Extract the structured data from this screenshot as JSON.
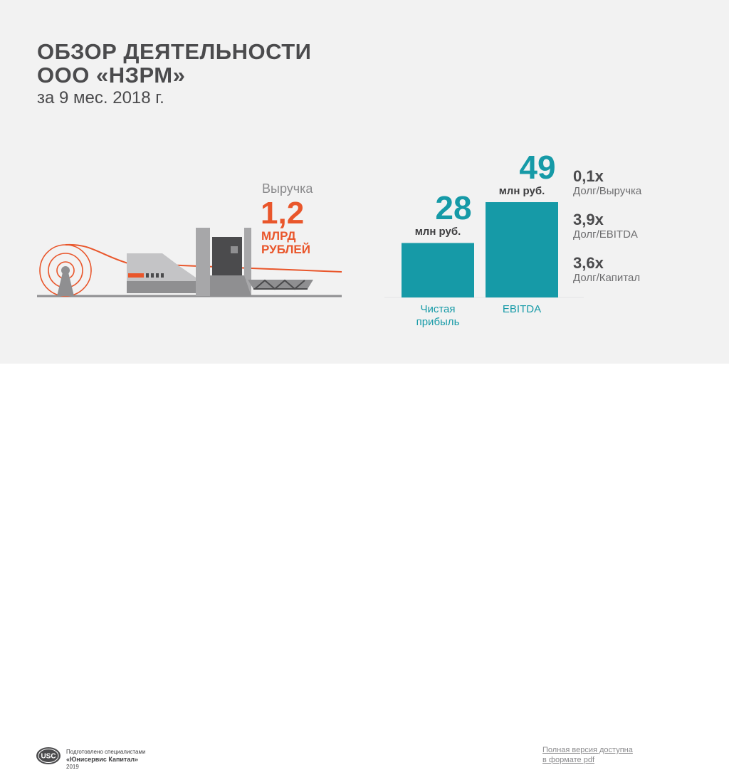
{
  "header": {
    "title_line1": "ОБЗОР ДЕЯТЕЛЬНОСТИ",
    "title_line2": "ООО «НЗРМ»",
    "subtitle": "за 9 мес. 2018 г."
  },
  "revenue": {
    "label": "Выручка",
    "value": "1,2",
    "unit_line1": "МЛРД",
    "unit_line2": "РУБЛЕЙ"
  },
  "chart_data": {
    "type": "bar",
    "categories": [
      "Чистая прибыль",
      "EBITDA"
    ],
    "category_lines": [
      [
        "Чистая",
        "прибыль"
      ],
      [
        "EBITDA"
      ]
    ],
    "values": [
      28,
      49
    ],
    "value_labels": [
      "28",
      "49"
    ],
    "unit": "млн руб.",
    "ylim": [
      0,
      55
    ],
    "grid": false,
    "bar_color": "#169aa7"
  },
  "ratios": [
    {
      "value": "0,1х",
      "label": "Долг/Выручка"
    },
    {
      "value": "3,9х",
      "label": "Долг/EBITDA"
    },
    {
      "value": "3,6х",
      "label": "Долг/Капитал"
    }
  ],
  "footer": {
    "logo_text": "USC",
    "prepared_line1": "Подготовлено специалистами",
    "prepared_line2": "«Юнисервис Капитал»",
    "year": "2019",
    "pdf_link_line1": "Полная версия доступна",
    "pdf_link_line2": "в формате pdf"
  },
  "colors": {
    "accent_orange": "#e9562b",
    "accent_teal": "#169aa7",
    "text_dark": "#4b4b4d",
    "machine_gray": "#8f8f91"
  }
}
